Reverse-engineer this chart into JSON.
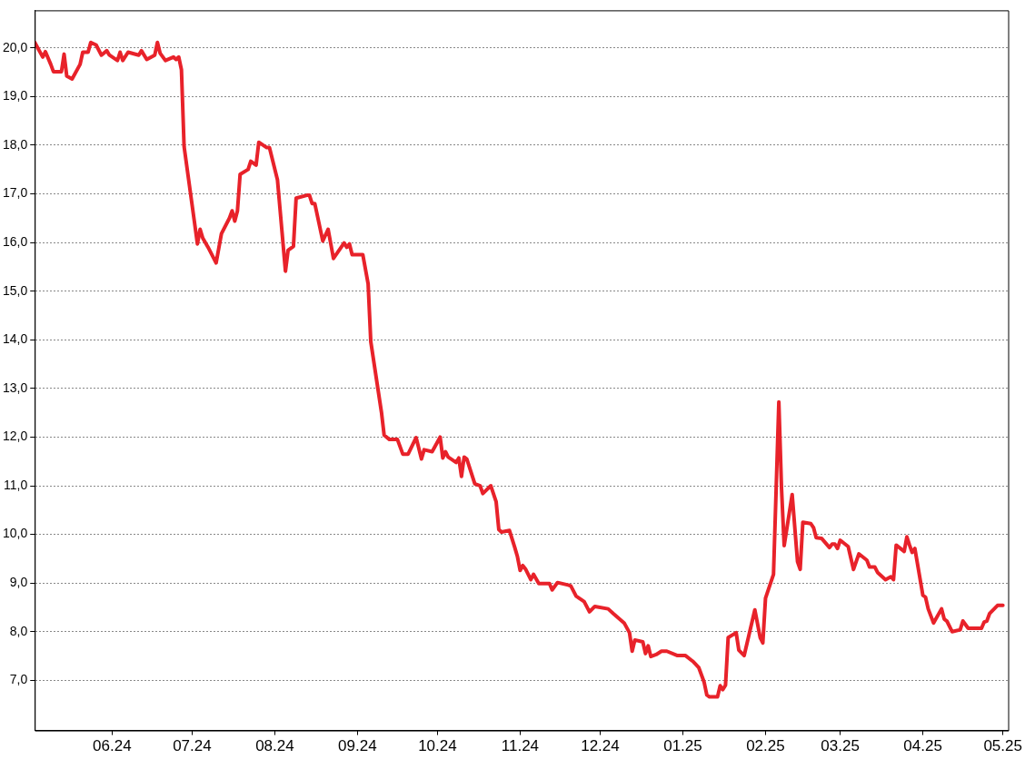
{
  "chart_data": {
    "type": "line",
    "x": [
      "2024-05-03",
      "2024-05-06",
      "2024-05-07",
      "2024-05-09",
      "2024-05-10",
      "2024-05-13",
      "2024-05-14",
      "2024-05-15",
      "2024-05-17",
      "2024-05-20",
      "2024-05-21",
      "2024-05-23",
      "2024-05-24",
      "2024-05-26",
      "2024-05-28",
      "2024-05-30",
      "2024-05-31",
      "2024-06-03",
      "2024-06-04",
      "2024-06-05",
      "2024-06-07",
      "2024-06-11",
      "2024-06-12",
      "2024-06-14",
      "2024-06-17",
      "2024-06-18",
      "2024-06-19",
      "2024-06-21",
      "2024-06-24",
      "2024-06-25",
      "2024-06-26",
      "2024-06-27",
      "2024-06-28",
      "2024-07-03",
      "2024-07-04",
      "2024-07-05",
      "2024-07-07",
      "2024-07-10",
      "2024-07-12",
      "2024-07-15",
      "2024-07-16",
      "2024-07-17",
      "2024-07-18",
      "2024-07-19",
      "2024-07-22",
      "2024-07-23",
      "2024-07-25",
      "2024-07-26",
      "2024-07-29",
      "2024-07-30",
      "2024-08-02",
      "2024-08-05",
      "2024-08-06",
      "2024-08-08",
      "2024-08-09",
      "2024-08-13",
      "2024-08-14",
      "2024-08-15",
      "2024-08-16",
      "2024-08-19",
      "2024-08-21",
      "2024-08-23",
      "2024-08-27",
      "2024-08-28",
      "2024-08-29",
      "2024-08-30",
      "2024-09-03",
      "2024-09-05",
      "2024-09-06",
      "2024-09-10",
      "2024-09-11",
      "2024-09-13",
      "2024-09-16",
      "2024-09-18",
      "2024-09-20",
      "2024-09-23",
      "2024-09-25",
      "2024-09-26",
      "2024-09-29",
      "2024-10-02",
      "2024-10-03",
      "2024-10-04",
      "2024-10-05",
      "2024-10-08",
      "2024-10-09",
      "2024-10-10",
      "2024-10-11",
      "2024-10-12",
      "2024-10-15",
      "2024-10-17",
      "2024-10-18",
      "2024-10-21",
      "2024-10-23",
      "2024-10-24",
      "2024-10-25",
      "2024-10-28",
      "2024-10-30",
      "2024-10-31",
      "2024-11-01",
      "2024-11-02",
      "2024-11-03",
      "2024-11-05",
      "2024-11-06",
      "2024-11-08",
      "2024-11-12",
      "2024-11-13",
      "2024-11-15",
      "2024-11-19",
      "2024-11-20",
      "2024-11-22",
      "2024-11-25",
      "2024-11-27",
      "2024-11-29",
      "2024-12-04",
      "2024-12-06",
      "2024-12-10",
      "2024-12-12",
      "2024-12-13",
      "2024-12-14",
      "2024-12-17",
      "2024-12-18",
      "2024-12-19",
      "2024-12-20",
      "2024-12-22",
      "2024-12-24",
      "2024-12-26",
      "2024-12-30",
      "2025-01-02",
      "2025-01-05",
      "2025-01-07",
      "2025-01-09",
      "2025-01-10",
      "2025-01-11",
      "2025-01-14",
      "2025-01-15",
      "2025-01-16",
      "2025-01-17",
      "2025-01-18",
      "2025-01-21",
      "2025-01-22",
      "2025-01-24",
      "2025-01-28",
      "2025-01-30",
      "2025-01-31",
      "2025-02-01",
      "2025-02-04",
      "2025-02-06",
      "2025-02-07",
      "2025-02-08",
      "2025-02-11",
      "2025-02-13",
      "2025-02-14",
      "2025-02-15",
      "2025-02-18",
      "2025-02-19",
      "2025-02-20",
      "2025-02-22",
      "2025-02-25",
      "2025-02-26",
      "2025-02-27",
      "2025-02-28",
      "2025-03-01",
      "2025-03-04",
      "2025-03-06",
      "2025-03-08",
      "2025-03-11",
      "2025-03-12",
      "2025-03-14",
      "2025-03-15",
      "2025-03-18",
      "2025-03-20",
      "2025-03-21",
      "2025-03-22",
      "2025-03-25",
      "2025-03-26",
      "2025-03-27",
      "2025-03-28",
      "2025-03-29",
      "2025-04-01",
      "2025-04-02",
      "2025-04-03",
      "2025-04-05",
      "2025-04-08",
      "2025-04-09",
      "2025-04-10",
      "2025-04-12",
      "2025-04-15",
      "2025-04-16",
      "2025-04-18",
      "2025-04-23",
      "2025-04-24",
      "2025-04-25",
      "2025-04-26",
      "2025-04-29",
      "2025-05-01"
    ],
    "series": [
      {
        "color": "#e8222a",
        "values": [
          20.11,
          19.81,
          19.92,
          19.66,
          19.51,
          19.51,
          19.87,
          19.42,
          19.36,
          19.66,
          19.91,
          19.91,
          20.11,
          20.06,
          19.85,
          19.94,
          19.85,
          19.74,
          19.91,
          19.74,
          19.91,
          19.85,
          19.94,
          19.76,
          19.85,
          20.11,
          19.89,
          19.74,
          19.81,
          19.76,
          19.81,
          19.55,
          17.97,
          15.97,
          16.27,
          16.09,
          15.9,
          15.58,
          16.18,
          16.5,
          16.65,
          16.44,
          16.65,
          17.4,
          17.5,
          17.67,
          17.59,
          18.06,
          17.95,
          17.95,
          17.29,
          15.41,
          15.84,
          15.92,
          16.91,
          16.97,
          16.97,
          16.8,
          16.8,
          16.03,
          16.27,
          15.67,
          15.99,
          15.9,
          15.97,
          15.75,
          15.75,
          15.15,
          13.96,
          12.51,
          12.04,
          11.95,
          11.95,
          11.65,
          11.65,
          11.99,
          11.55,
          11.74,
          11.7,
          12.0,
          11.57,
          11.7,
          11.59,
          11.48,
          11.57,
          11.19,
          11.59,
          11.55,
          11.04,
          11.0,
          10.84,
          11.0,
          10.67,
          10.1,
          10.05,
          10.08,
          9.73,
          9.54,
          9.26,
          9.36,
          9.29,
          9.07,
          9.18,
          8.99,
          8.99,
          8.86,
          9.01,
          8.96,
          8.94,
          8.73,
          8.62,
          8.41,
          8.52,
          8.47,
          8.37,
          8.18,
          7.98,
          7.6,
          7.83,
          7.79,
          7.55,
          7.71,
          7.49,
          7.53,
          7.6,
          7.6,
          7.51,
          7.51,
          7.38,
          7.26,
          6.96,
          6.7,
          6.66,
          6.66,
          6.89,
          6.81,
          6.9,
          7.88,
          7.98,
          7.62,
          7.51,
          8.45,
          7.88,
          7.77,
          8.69,
          9.18,
          12.72,
          10.95,
          9.77,
          10.82,
          9.44,
          9.28,
          10.25,
          10.22,
          10.14,
          9.93,
          9.92,
          9.73,
          9.8,
          9.8,
          9.71,
          9.88,
          9.75,
          9.28,
          9.6,
          9.47,
          9.33,
          9.33,
          9.22,
          9.07,
          9.13,
          9.07,
          9.78,
          9.65,
          9.95,
          9.78,
          9.63,
          9.71,
          8.75,
          8.71,
          8.47,
          8.18,
          8.47,
          8.26,
          8.22,
          8.0,
          8.04,
          8.22,
          8.07,
          8.07,
          8.2,
          8.22,
          8.37,
          8.54,
          8.54
        ]
      }
    ],
    "xlim": [
      "2024-05-03",
      "2025-05-03"
    ],
    "xticks": [
      {
        "value": "2024-06-01",
        "label": "06.24"
      },
      {
        "value": "2024-07-01",
        "label": "07.24"
      },
      {
        "value": "2024-08-01",
        "label": "08.24"
      },
      {
        "value": "2024-09-01",
        "label": "09.24"
      },
      {
        "value": "2024-10-01",
        "label": "10.24"
      },
      {
        "value": "2024-11-01",
        "label": "11.24"
      },
      {
        "value": "2024-12-01",
        "label": "12.24"
      },
      {
        "value": "2025-01-01",
        "label": "01.25"
      },
      {
        "value": "2025-02-01",
        "label": "02.25"
      },
      {
        "value": "2025-03-01",
        "label": "03.25"
      },
      {
        "value": "2025-04-01",
        "label": "04.25"
      },
      {
        "value": "2025-05-01",
        "label": "05.25"
      }
    ],
    "ylim": [
      5.97,
      20.77
    ],
    "yticks": [
      {
        "value": 7,
        "label": "7,0"
      },
      {
        "value": 8,
        "label": "8,0"
      },
      {
        "value": 9,
        "label": "9,0"
      },
      {
        "value": 10,
        "label": "10,0"
      },
      {
        "value": 11,
        "label": "11,0"
      },
      {
        "value": 12,
        "label": "12,0"
      },
      {
        "value": 13,
        "label": "13,0"
      },
      {
        "value": 14,
        "label": "14,0"
      },
      {
        "value": 15,
        "label": "15,0"
      },
      {
        "value": 16,
        "label": "16,0"
      },
      {
        "value": 17,
        "label": "17,0"
      },
      {
        "value": 18,
        "label": "18,0"
      },
      {
        "value": 19,
        "label": "19,0"
      },
      {
        "value": 20,
        "label": "20,0"
      }
    ],
    "grid": "y",
    "legend": false,
    "marker": "none",
    "line_style": "solid"
  }
}
